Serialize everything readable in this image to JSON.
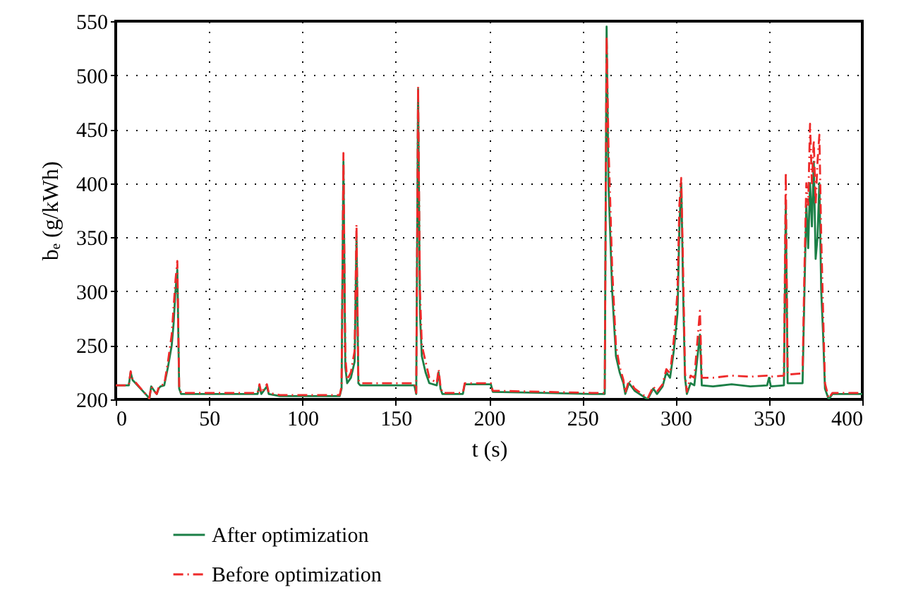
{
  "chart_data": {
    "type": "line",
    "xlabel": "t (s)",
    "ylabel": "bₑ (g/kWh)",
    "x": [
      0,
      7,
      8,
      9,
      17,
      18,
      19,
      21,
      22,
      23,
      24,
      26,
      28,
      30,
      31,
      32,
      33,
      34,
      35,
      76,
      77,
      78,
      81,
      82,
      88,
      120,
      121,
      122,
      123,
      124,
      126,
      128,
      129,
      130,
      131,
      160,
      161,
      162,
      163,
      164,
      166,
      168,
      172,
      173,
      174,
      175,
      186,
      187,
      201,
      202,
      255,
      262,
      263,
      264,
      265,
      266,
      268,
      270,
      272,
      273,
      275,
      278,
      285,
      288,
      290,
      293,
      295,
      297,
      299,
      301,
      302,
      303,
      304,
      305,
      306,
      308,
      310,
      313,
      314,
      320,
      330,
      340,
      349,
      350,
      351,
      358,
      359,
      360,
      368,
      369,
      370,
      371,
      372,
      373,
      374,
      375,
      376,
      377,
      378,
      379,
      380,
      382,
      384,
      400
    ],
    "series": [
      {
        "name": "After optimization",
        "color": "#1b7f46",
        "line_style": "solid",
        "values": [
          213,
          213,
          225,
          218,
          203,
          200,
          212,
          207,
          205,
          210,
          212,
          213,
          230,
          250,
          270,
          300,
          320,
          210,
          205,
          205,
          212,
          205,
          212,
          205,
          203,
          203,
          210,
          420,
          230,
          215,
          220,
          235,
          350,
          215,
          213,
          213,
          205,
          487,
          280,
          240,
          225,
          215,
          213,
          225,
          210,
          205,
          205,
          214,
          214,
          207,
          205,
          205,
          545,
          400,
          350,
          300,
          240,
          225,
          215,
          205,
          215,
          208,
          200,
          210,
          205,
          212,
          225,
          220,
          245,
          280,
          360,
          400,
          300,
          220,
          205,
          215,
          213,
          260,
          213,
          212,
          214,
          212,
          213,
          220,
          212,
          213,
          380,
          215,
          215,
          300,
          380,
          340,
          400,
          360,
          420,
          330,
          350,
          400,
          300,
          260,
          210,
          200,
          205,
          205
        ]
      },
      {
        "name": "Before optimization",
        "color": "#ee2a2a",
        "line_style": "dashed",
        "values": [
          213,
          213,
          226,
          219,
          203,
          201,
          212,
          207,
          205,
          211,
          213,
          214,
          235,
          260,
          285,
          310,
          328,
          212,
          206,
          206,
          214,
          206,
          214,
          206,
          204,
          204,
          212,
          428,
          240,
          218,
          225,
          245,
          362,
          218,
          215,
          215,
          206,
          490,
          300,
          250,
          235,
          220,
          215,
          228,
          212,
          206,
          206,
          215,
          215,
          208,
          206,
          206,
          536,
          435,
          380,
          320,
          250,
          230,
          218,
          206,
          218,
          210,
          201,
          212,
          207,
          214,
          228,
          224,
          255,
          300,
          380,
          405,
          320,
          225,
          207,
          222,
          220,
          282,
          220,
          220,
          222,
          221,
          222,
          222,
          221,
          222,
          410,
          223,
          224,
          320,
          400,
          380,
          455,
          400,
          440,
          380,
          420,
          445,
          350,
          280,
          215,
          201,
          206,
          206
        ]
      }
    ],
    "xlim": [
      0,
      400
    ],
    "xticks": [
      0,
      50,
      100,
      150,
      200,
      250,
      300,
      350,
      400
    ],
    "ylim": [
      200,
      550
    ],
    "yticks": [
      200,
      250,
      300,
      350,
      400,
      450,
      500,
      550
    ],
    "grid": true,
    "legend": "bottom left"
  }
}
